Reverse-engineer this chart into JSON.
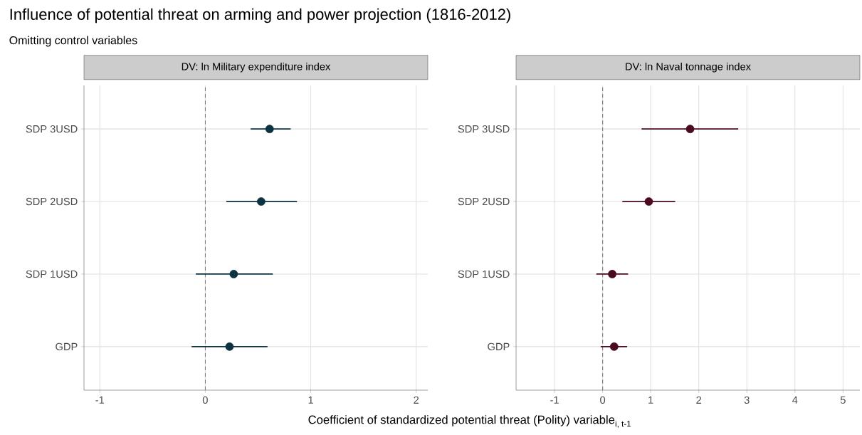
{
  "chart_data": [
    {
      "type": "other",
      "title": "Influence of potential threat on arming and power projection (1816-2012)",
      "subtitle": "Omitting control variables"
    },
    {
      "type": "scatter",
      "orientation": "horizontal",
      "title": "DV: ln Military expenditure index",
      "xlabel": "\\text{Coefficient of standardized potential threat (Polity) variable}_{\\text{i, t-1}}",
      "categories": [
        "SDP 3USD",
        "SDP 2USD",
        "SDP 1USD",
        "GDP"
      ],
      "series": [
        {
          "color": "#0d3342",
          "values": [
            0.61,
            0.53,
            0.27,
            0.23
          ],
          "errors": [
            [
              0.43,
              0.81
            ],
            [
              0.2,
              0.87
            ],
            [
              -0.09,
              0.64
            ],
            [
              -0.13,
              0.59
            ]
          ]
        }
      ],
      "xlim": [
        -1.15,
        2.11
      ],
      "xticks": [
        -1,
        0,
        1,
        2
      ],
      "grid": true,
      "marker": "circle",
      "ref_lines": [
        {
          "axis": "x",
          "value": 0,
          "color": "#7f7f7f",
          "line_style": "dashed"
        }
      ]
    },
    {
      "type": "scatter",
      "orientation": "horizontal",
      "title": "DV: ln Naval tonnage index",
      "categories": [
        "SDP 3USD",
        "SDP 2USD",
        "SDP 1USD",
        "GDP"
      ],
      "series": [
        {
          "color": "#4a0a1f",
          "values": [
            1.82,
            0.96,
            0.2,
            0.24
          ],
          "errors": [
            [
              0.81,
              2.82
            ],
            [
              0.41,
              1.51
            ],
            [
              -0.13,
              0.53
            ],
            [
              -0.04,
              0.51
            ]
          ]
        }
      ],
      "xlim": [
        -1.8,
        5.35
      ],
      "xticks": [
        -1,
        0,
        1,
        2,
        3,
        4,
        5
      ],
      "grid": true,
      "marker": "circle",
      "ref_lines": [
        {
          "axis": "x",
          "value": 0,
          "color": "#7f7f7f",
          "line_style": "dashed"
        }
      ]
    }
  ]
}
